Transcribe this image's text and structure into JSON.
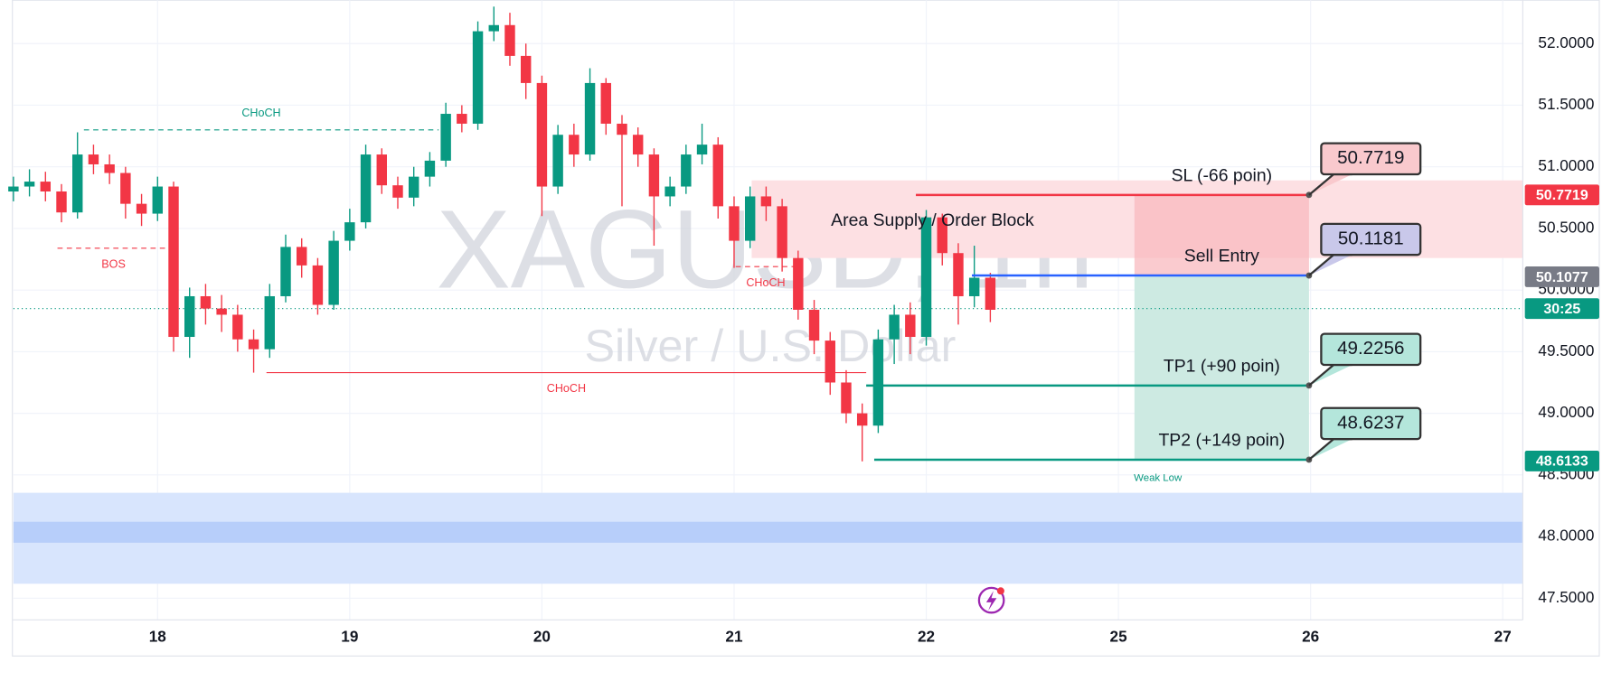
{
  "chart_data": {
    "type": "candlestick",
    "title": "XAGUSD, 1h",
    "subtitle": "Silver / U.S. Dollar",
    "x": [
      -18,
      -16,
      -14,
      -12,
      -10,
      -8,
      -6,
      -4,
      -2,
      0,
      2,
      4,
      6,
      8,
      10,
      12,
      14,
      16,
      18,
      20,
      22,
      24,
      26,
      28,
      30,
      32,
      34,
      36,
      38,
      40,
      42,
      44,
      46,
      48,
      50,
      52,
      54,
      56,
      58,
      60,
      62,
      64,
      66,
      68,
      70,
      72,
      74,
      76,
      78,
      80,
      82,
      84,
      86,
      88,
      90,
      92,
      94,
      96,
      98,
      100,
      102,
      104
    ],
    "open": [
      50.8,
      50.84,
      50.88,
      50.8,
      50.63,
      51.1,
      51.02,
      50.95,
      50.7,
      50.62,
      50.84,
      49.62,
      49.95,
      49.85,
      49.8,
      49.6,
      49.52,
      49.95,
      50.35,
      50.2,
      49.88,
      50.4,
      50.55,
      51.1,
      50.85,
      50.75,
      50.92,
      51.05,
      51.43,
      51.35,
      52.1,
      52.15,
      51.9,
      51.68,
      50.84,
      51.26,
      51.1,
      51.68,
      51.35,
      51.26,
      51.1,
      50.76,
      50.84,
      51.1,
      51.18,
      50.68,
      50.4,
      50.76,
      50.68,
      50.26,
      49.84,
      49.59,
      49.25,
      49.0,
      48.9,
      49.6,
      49.8,
      49.62,
      50.59,
      50.3,
      49.95,
      50.1
    ],
    "high": [
      50.92,
      50.98,
      50.96,
      50.86,
      51.28,
      51.18,
      51.1,
      51.0,
      50.78,
      50.92,
      50.88,
      50.02,
      50.05,
      49.96,
      49.88,
      49.68,
      50.05,
      50.45,
      50.42,
      50.26,
      50.48,
      50.66,
      51.18,
      51.15,
      50.92,
      51.0,
      51.12,
      51.52,
      51.5,
      52.18,
      52.3,
      52.25,
      52.0,
      51.74,
      51.34,
      51.35,
      51.8,
      51.72,
      51.42,
      51.32,
      51.15,
      50.92,
      51.18,
      51.35,
      51.24,
      50.76,
      50.84,
      50.84,
      50.74,
      50.32,
      49.92,
      49.66,
      49.35,
      49.08,
      49.68,
      49.88,
      49.9,
      50.65,
      50.62,
      50.38,
      50.36,
      50.14
    ],
    "low": [
      50.72,
      50.76,
      50.72,
      50.55,
      50.58,
      50.94,
      50.86,
      50.58,
      50.52,
      50.56,
      49.5,
      49.45,
      49.72,
      49.66,
      49.5,
      49.33,
      49.45,
      49.9,
      50.1,
      49.8,
      49.84,
      50.32,
      50.5,
      50.78,
      50.66,
      50.68,
      50.84,
      51.0,
      51.28,
      51.3,
      52.02,
      51.82,
      51.55,
      50.6,
      50.78,
      51.0,
      51.05,
      51.26,
      50.68,
      51.0,
      50.36,
      50.68,
      50.78,
      51.02,
      50.58,
      50.18,
      50.34,
      50.56,
      50.15,
      49.76,
      49.48,
      49.15,
      48.92,
      48.61,
      48.84,
      49.4,
      49.48,
      49.55,
      50.2,
      49.72,
      49.86,
      49.74
    ],
    "close": [
      50.84,
      50.88,
      50.8,
      50.63,
      51.1,
      51.02,
      50.95,
      50.7,
      50.62,
      50.84,
      49.62,
      49.95,
      49.85,
      49.8,
      49.6,
      49.52,
      49.95,
      50.35,
      50.2,
      49.88,
      50.4,
      50.55,
      51.1,
      50.85,
      50.75,
      50.92,
      51.05,
      51.43,
      51.35,
      52.1,
      52.15,
      51.9,
      51.68,
      50.84,
      51.26,
      51.1,
      51.68,
      51.35,
      51.26,
      51.1,
      50.76,
      50.84,
      51.1,
      51.18,
      50.68,
      50.4,
      50.76,
      50.68,
      50.26,
      49.84,
      49.59,
      49.25,
      49.0,
      48.9,
      49.6,
      49.8,
      49.62,
      50.59,
      50.3,
      49.95,
      50.1,
      49.84
    ],
    "up_color": "#089981",
    "down_color": "#f23645",
    "xlim": [
      -18,
      170.5
    ],
    "xticks": [
      {
        "value": 0,
        "label": "18"
      },
      {
        "value": 24,
        "label": "19"
      },
      {
        "value": 48,
        "label": "20"
      },
      {
        "value": 72,
        "label": "21"
      },
      {
        "value": 96,
        "label": "22"
      },
      {
        "value": 120,
        "label": "25"
      },
      {
        "value": 144,
        "label": "26"
      },
      {
        "value": 168,
        "label": "27"
      }
    ],
    "ylim": [
      47.324,
      52.352
    ],
    "yticks": [
      {
        "value": 47.5,
        "label": "47.5000"
      },
      {
        "value": 48,
        "label": "48.0000"
      },
      {
        "value": 48.5,
        "label": "48.5000"
      },
      {
        "value": 49,
        "label": "49.0000"
      },
      {
        "value": 49.5,
        "label": "49.5000"
      },
      {
        "value": 50,
        "label": "50.0000"
      },
      {
        "value": 50.5,
        "label": "50.5000"
      },
      {
        "value": 51,
        "label": "51.0000"
      },
      {
        "value": 51.5,
        "label": "51.5000"
      },
      {
        "value": 52,
        "label": "52.0000"
      }
    ],
    "grid": true,
    "structure": [
      {
        "label": "CHoCH",
        "price": 51.3,
        "from": -9.2,
        "to": 35.1,
        "color": "#089981"
      },
      {
        "label": "BOS",
        "price": 50.34,
        "from": -12.5,
        "to": 1.5,
        "color": "#f23645"
      },
      {
        "label": "CHoCH",
        "price": 49.33,
        "from": 13.6,
        "to": 88.5,
        "color": "#f23645"
      },
      {
        "label": "CHoCH",
        "price": 50.19,
        "from": 72.2,
        "to": 79.7,
        "color": "#f23645"
      }
    ],
    "zones": [
      {
        "label": "Area Supply / Order Block",
        "low": 50.26,
        "high": 50.89,
        "from": 74.2,
        "to": 170.5,
        "color": "#fde0e3"
      },
      {
        "low": 47.617,
        "high": 48.355,
        "from": -18,
        "to": 170.5,
        "color": "#d8e5fd"
      },
      {
        "low": 47.95,
        "high": 48.12,
        "from": -18,
        "to": 170.5,
        "color": "#b7cefa"
      }
    ],
    "position": {
      "from": 122,
      "to": 143.8,
      "loss_color": "#f8b9bf",
      "profit_color": "#cdeae2",
      "levels": [
        {
          "label": "SL (-66 poin)",
          "value": 50.7719,
          "start": 94.7,
          "color": "#f23645",
          "box_color": "#f9c9cd"
        },
        {
          "label": "Sell Entry",
          "value": 50.1181,
          "start": 101.7,
          "color": "#2962ff",
          "box_color": "#c9c8ea"
        },
        {
          "label": "TP1 (+90 poin)",
          "value": 49.2256,
          "start": 88.5,
          "color": "#089981",
          "box_color": "#b4e6db"
        },
        {
          "label": "TP2 (+149 poin)",
          "value": 48.6237,
          "start": 89.5,
          "color": "#089981",
          "box_color": "#b4e6db"
        }
      ],
      "note": "Weak Low"
    },
    "price_labels": [
      {
        "value": 50.7719,
        "color": "#f23645"
      },
      {
        "value": 50.1077,
        "color": "#787b86"
      },
      {
        "value": 49.85,
        "label": "30:25",
        "color": "#089981"
      },
      {
        "value": 48.6133,
        "color": "#089981"
      }
    ]
  }
}
